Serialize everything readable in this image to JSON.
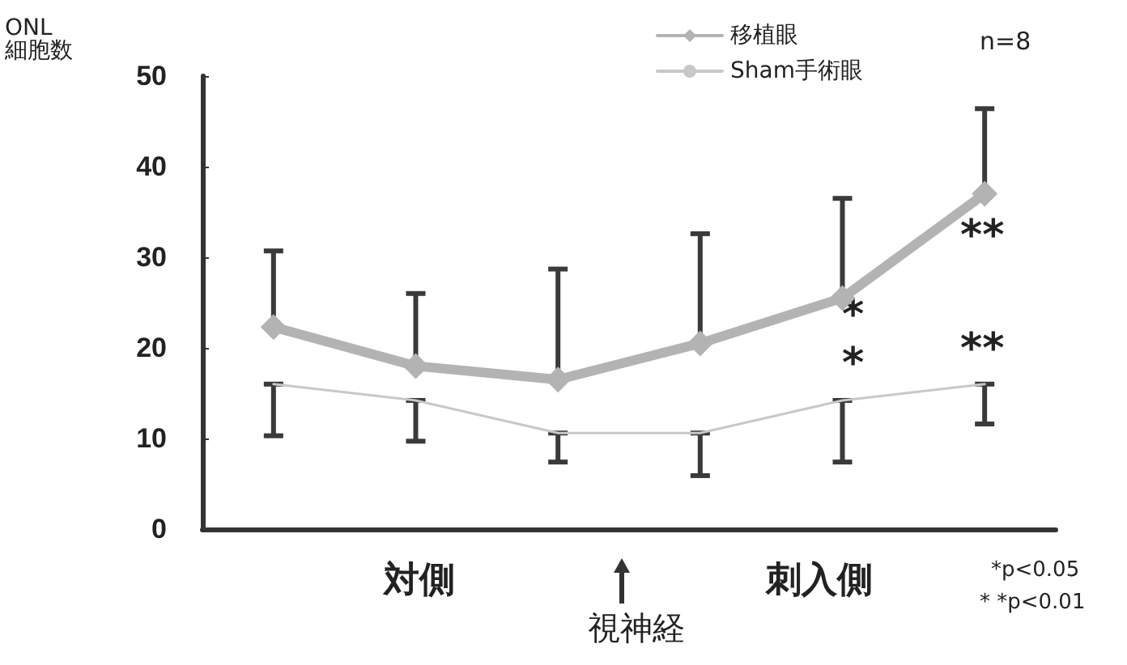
{
  "chart_data": {
    "type": "line",
    "ylabel": "ONL\n細胞数",
    "categories": [
      null,
      null,
      null,
      null,
      null,
      null
    ],
    "series": [
      {
        "name": "移植眼",
        "color": "#b3b3b3",
        "values": [
          22.3,
          18,
          16.5,
          20.5,
          25.5,
          37
        ],
        "errors": [
          [
            22.3,
            30.7
          ],
          [
            18,
            26
          ],
          [
            16.5,
            28.7
          ],
          [
            20.5,
            32.6
          ],
          [
            25.5,
            36.5
          ],
          [
            37,
            46.4
          ]
        ],
        "marker": "diamond"
      },
      {
        "name": "Sham手術眼",
        "color": "#c8c8c8",
        "values": [
          16,
          14.2,
          10.6,
          10.6,
          14.2,
          16
        ],
        "errors": [
          [
            10.3,
            16
          ],
          [
            9.7,
            14.2
          ],
          [
            7.4,
            10.6
          ],
          [
            5.9,
            10.6
          ],
          [
            7.4,
            14.2
          ],
          [
            11.6,
            16
          ]
        ],
        "marker": "none"
      }
    ],
    "ylim": [
      0,
      50
    ],
    "yticks": [
      0,
      10,
      20,
      30,
      40,
      50
    ],
    "grid": false,
    "legend": "top right",
    "annotations": [
      "n=8",
      "対側",
      "視神経",
      "刺入側",
      "*p<0.05",
      "* *p<0.01",
      "**",
      "*",
      "*",
      "**"
    ]
  }
}
